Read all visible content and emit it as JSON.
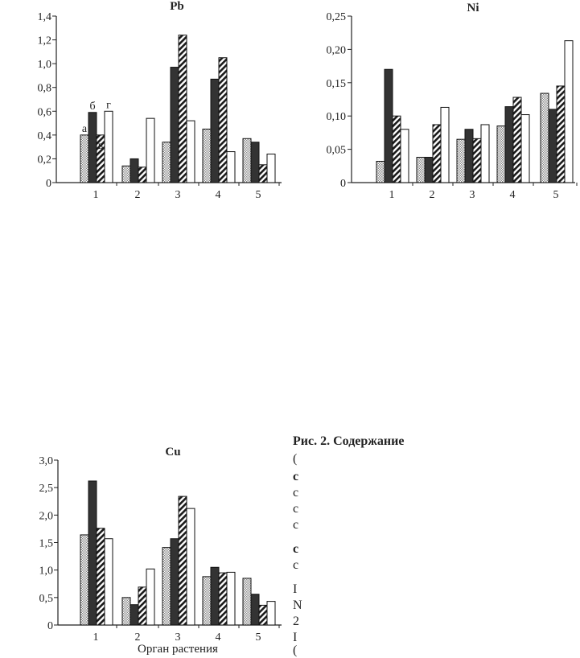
{
  "chart_data": [
    {
      "type": "bar",
      "title": "Pb",
      "categories": [
        "1",
        "2",
        "3",
        "4",
        "5"
      ],
      "series": [
        {
          "name": "а",
          "values": [
            0.4,
            0.14,
            0.34,
            0.45,
            0.37
          ]
        },
        {
          "name": "б",
          "values": [
            0.59,
            0.2,
            0.97,
            0.87,
            0.34
          ]
        },
        {
          "name": "в",
          "values": [
            0.4,
            0.13,
            1.24,
            1.05,
            0.15
          ]
        },
        {
          "name": "г",
          "values": [
            0.6,
            0.54,
            0.52,
            0.26,
            0.24
          ]
        }
      ],
      "yticks": [
        "0",
        "0,2",
        "0,4",
        "0,6",
        "0,8",
        "1,0",
        "1,2",
        "1,4"
      ],
      "ylim": [
        0,
        1.4
      ],
      "xlabel": "",
      "ylabel": "",
      "annotations": [
        "а",
        "б",
        "в",
        "г"
      ]
    },
    {
      "type": "bar",
      "title": "Ni",
      "categories": [
        "1",
        "2",
        "3",
        "4",
        "5"
      ],
      "series": [
        {
          "name": "а",
          "values": [
            0.032,
            0.038,
            0.065,
            0.085,
            0.134
          ]
        },
        {
          "name": "б",
          "values": [
            0.17,
            0.038,
            0.08,
            0.114,
            0.11
          ]
        },
        {
          "name": "в",
          "values": [
            0.1,
            0.087,
            0.066,
            0.128,
            0.145
          ]
        },
        {
          "name": "г",
          "values": [
            0.08,
            0.113,
            0.087,
            0.102,
            0.213
          ]
        }
      ],
      "yticks": [
        "0",
        "0,05",
        "0,10",
        "0,15",
        "0,20",
        "0,25"
      ],
      "ylim": [
        0,
        0.25
      ],
      "xlabel": "",
      "ylabel": ""
    },
    {
      "type": "bar",
      "title": "Cu",
      "categories": [
        "1",
        "2",
        "3",
        "4",
        "5"
      ],
      "series": [
        {
          "name": "а",
          "values": [
            1.64,
            0.5,
            1.41,
            0.88,
            0.85
          ]
        },
        {
          "name": "б",
          "values": [
            2.62,
            0.37,
            1.57,
            1.05,
            0.56
          ]
        },
        {
          "name": "в",
          "values": [
            1.76,
            0.69,
            2.34,
            0.95,
            0.36
          ]
        },
        {
          "name": "г",
          "values": [
            1.57,
            1.02,
            2.12,
            0.96,
            0.43
          ]
        }
      ],
      "yticks": [
        "0",
        "0,5",
        "1,0",
        "1,5",
        "2,0",
        "2,5",
        "3,0"
      ],
      "ylim": [
        0,
        3.0
      ],
      "xlabel": "Орган растения",
      "ylabel": ""
    }
  ],
  "side_text": [
    {
      "text": "Рис. 2. Содержание",
      "bold": true
    },
    {
      "text": "(",
      "bold": false
    },
    {
      "text": "с",
      "bold": true
    },
    {
      "text": "с",
      "bold": false
    },
    {
      "text": "с",
      "bold": false
    },
    {
      "text": "с",
      "bold": false
    },
    {
      "text": "с",
      "bold": true
    },
    {
      "text": "с",
      "bold": false
    },
    {
      "text": "I",
      "bold": false
    },
    {
      "text": "N",
      "bold": false
    },
    {
      "text": "2",
      "bold": false
    },
    {
      "text": "I",
      "bold": false
    },
    {
      "text": "(",
      "bold": false
    }
  ],
  "colors": {
    "a": "#b8b8b8",
    "b": "#333333",
    "axis": "#222222"
  }
}
